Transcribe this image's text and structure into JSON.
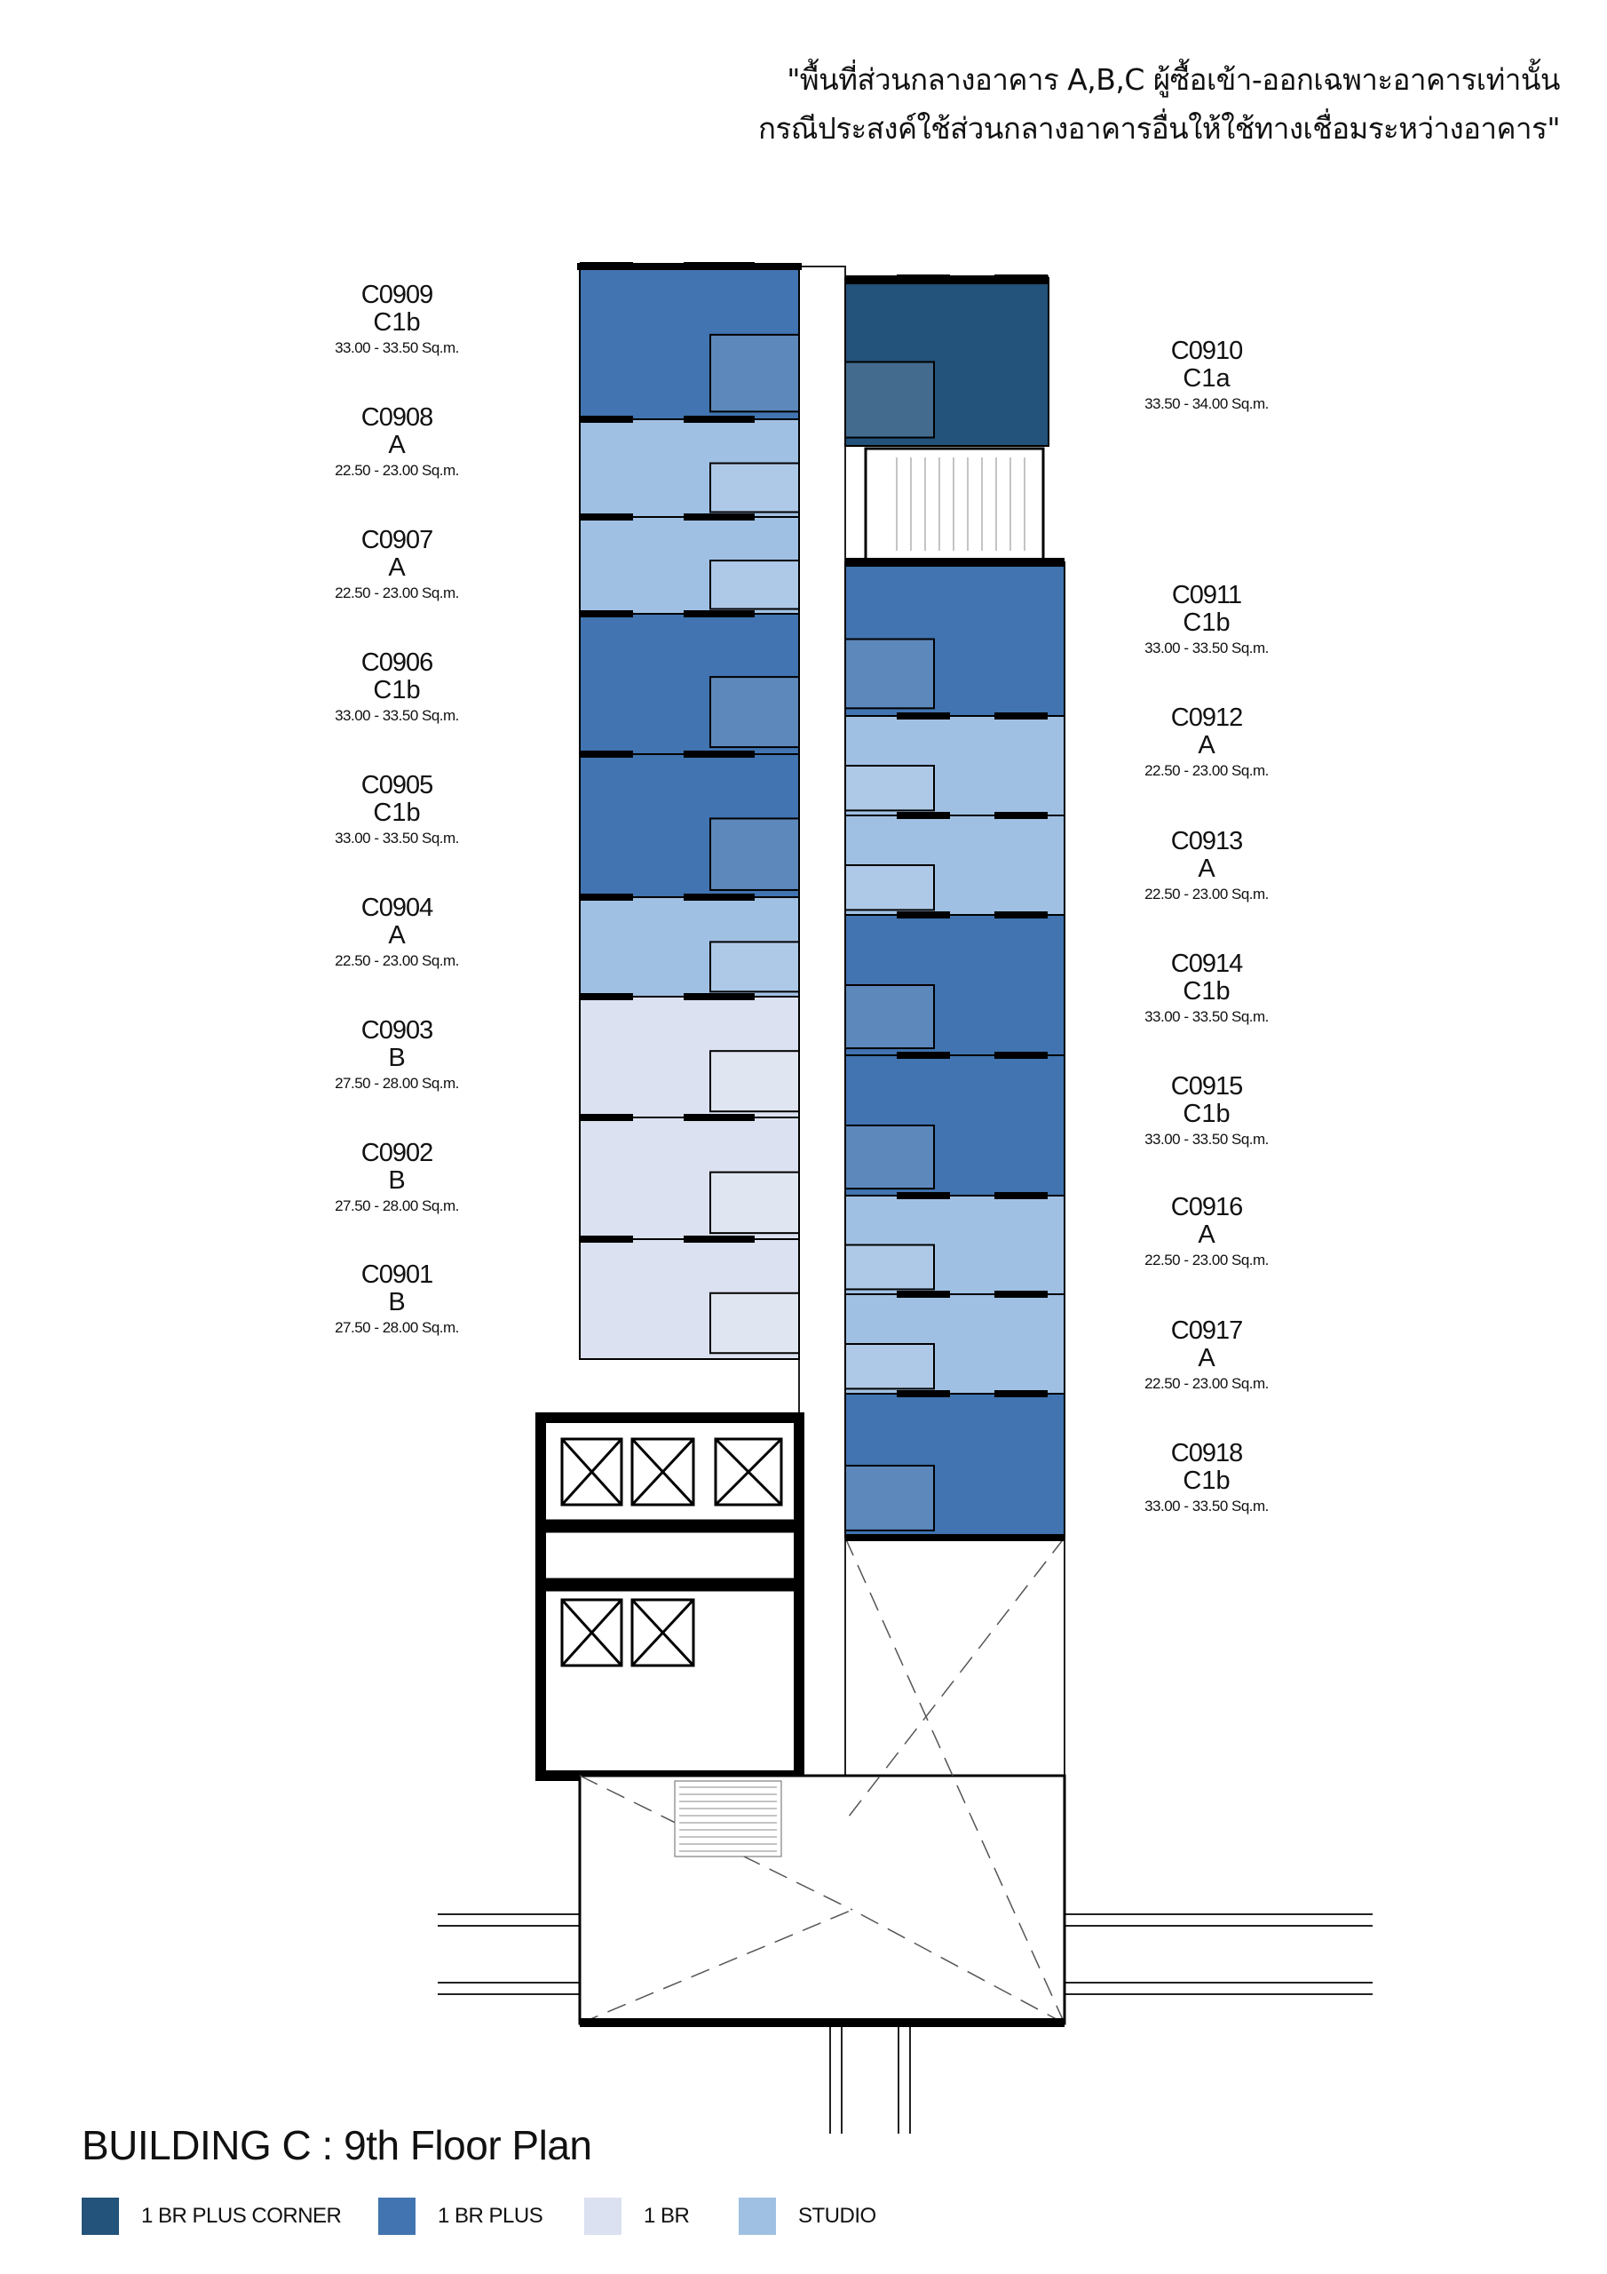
{
  "notice": {
    "line1": "\"พื้นที่ส่วนกลางอาคาร A,B,C ผู้ซื้อเข้า-ออกเฉพาะอาคารเท่านั้น",
    "line2": "กรณีประสงค์ใช้ส่วนกลางอาคารอื่นให้ใช้ทางเชื่อมระหว่างอาคาร\""
  },
  "title": "BUILDING C : 9th Floor Plan",
  "colors": {
    "1br_plus_corner": "#23527a",
    "1br_plus": "#4174b0",
    "1br": "#dbe1f0",
    "studio": "#a0c0e3"
  },
  "legend": [
    {
      "label": "1 BR PLUS CORNER",
      "category": "1br_plus_corner"
    },
    {
      "label": "1 BR PLUS",
      "category": "1br_plus"
    },
    {
      "label": "1 BR",
      "category": "1br"
    },
    {
      "label": "STUDIO",
      "category": "studio"
    }
  ],
  "units_left": [
    {
      "code": "C0909",
      "type": "C1b",
      "area": "33.00 - 33.50 Sq.m.",
      "category": "1br_plus"
    },
    {
      "code": "C0908",
      "type": "A",
      "area": "22.50 - 23.00 Sq.m.",
      "category": "studio"
    },
    {
      "code": "C0907",
      "type": "A",
      "area": "22.50 - 23.00 Sq.m.",
      "category": "studio"
    },
    {
      "code": "C0906",
      "type": "C1b",
      "area": "33.00 - 33.50 Sq.m.",
      "category": "1br_plus"
    },
    {
      "code": "C0905",
      "type": "C1b",
      "area": "33.00 - 33.50 Sq.m.",
      "category": "1br_plus"
    },
    {
      "code": "C0904",
      "type": "A",
      "area": "22.50 - 23.00 Sq.m.",
      "category": "studio"
    },
    {
      "code": "C0903",
      "type": "B",
      "area": "27.50 - 28.00 Sq.m.",
      "category": "1br"
    },
    {
      "code": "C0902",
      "type": "B",
      "area": "27.50 - 28.00 Sq.m.",
      "category": "1br"
    },
    {
      "code": "C0901",
      "type": "B",
      "area": "27.50 - 28.00 Sq.m.",
      "category": "1br"
    }
  ],
  "units_right": [
    {
      "code": "C0910",
      "type": "C1a",
      "area": "33.50 - 34.00 Sq.m.",
      "category": "1br_plus_corner"
    },
    {
      "code": "C0911",
      "type": "C1b",
      "area": "33.00 - 33.50 Sq.m.",
      "category": "1br_plus"
    },
    {
      "code": "C0912",
      "type": "A",
      "area": "22.50 - 23.00 Sq.m.",
      "category": "studio"
    },
    {
      "code": "C0913",
      "type": "A",
      "area": "22.50 - 23.00 Sq.m.",
      "category": "studio"
    },
    {
      "code": "C0914",
      "type": "C1b",
      "area": "33.00 - 33.50 Sq.m.",
      "category": "1br_plus"
    },
    {
      "code": "C0915",
      "type": "C1b",
      "area": "33.00 - 33.50 Sq.m.",
      "category": "1br_plus"
    },
    {
      "code": "C0916",
      "type": "A",
      "area": "22.50 - 23.00 Sq.m.",
      "category": "studio"
    },
    {
      "code": "C0917",
      "type": "A",
      "area": "22.50 - 23.00 Sq.m.",
      "category": "studio"
    },
    {
      "code": "C0918",
      "type": "C1b",
      "area": "33.00 - 33.50 Sq.m.",
      "category": "1br_plus"
    }
  ]
}
